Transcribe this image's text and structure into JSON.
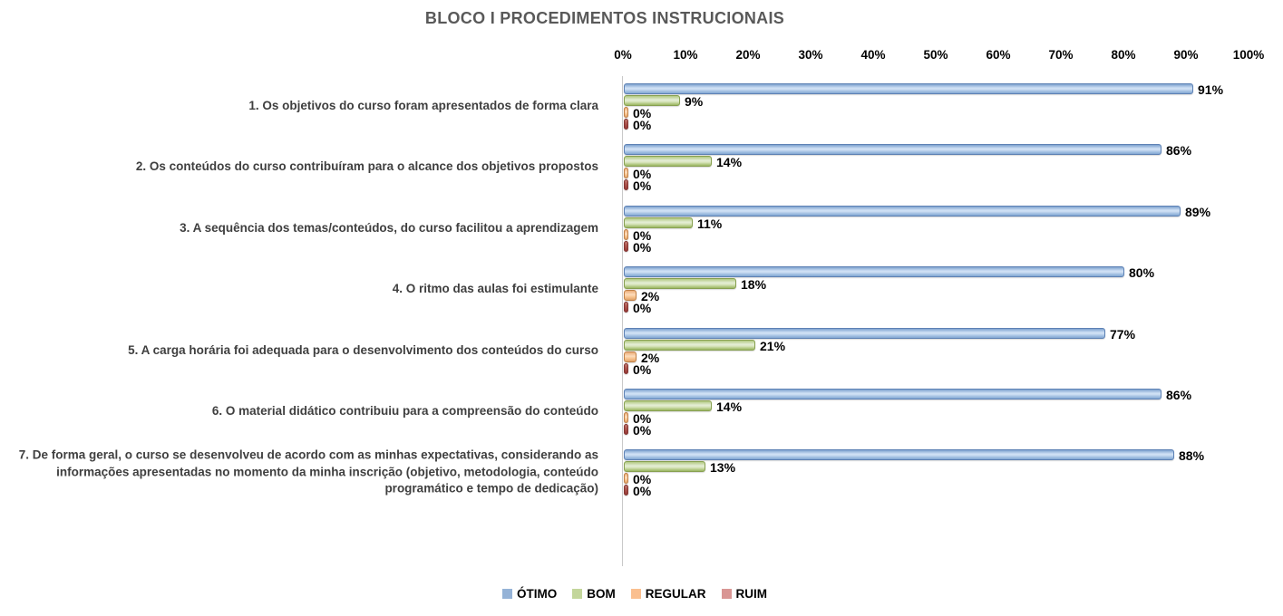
{
  "chart_data": {
    "type": "bar",
    "orientation": "horizontal",
    "title": "BLOCO I PROCEDIMENTOS INSTRUCIONAIS",
    "title_color": "#595959",
    "grid": false,
    "x_axis": {
      "position": "top",
      "min": 0,
      "max": 100,
      "tick_step": 10,
      "ticks": [
        "0%",
        "10%",
        "20%",
        "30%",
        "40%",
        "50%",
        "60%",
        "70%",
        "80%",
        "90%",
        "100%"
      ]
    },
    "categories": [
      "1. Os objetivos do curso foram apresentados de forma clara",
      "2. Os conteúdos do curso contribuíram para o alcance dos objetivos propostos",
      "3. A sequência dos temas/conteúdos, do curso facilitou a aprendizagem",
      "4. O ritmo das aulas foi estimulante",
      "5. A carga horária foi adequada para o desenvolvimento dos conteúdos do curso",
      "6. O material didático contribuiu para a compreensão do conteúdo",
      "7. De forma geral, o curso se desenvolveu de acordo com as minhas expectativas, considerando as informações apresentadas no momento da minha inscrição (objetivo, metodologia, conteúdo programático e tempo de dedicação)"
    ],
    "series": [
      {
        "name": "ÓTIMO",
        "legend_color": "#95B3D7",
        "values": [
          91,
          86,
          89,
          80,
          77,
          86,
          88
        ]
      },
      {
        "name": "BOM",
        "legend_color": "#C3D69B",
        "values": [
          9,
          14,
          11,
          18,
          21,
          14,
          13
        ]
      },
      {
        "name": "REGULAR",
        "legend_color": "#FABF8F",
        "values": [
          0,
          0,
          0,
          2,
          2,
          0,
          0
        ]
      },
      {
        "name": "RUIM",
        "legend_color": "#D99694",
        "values": [
          0,
          0,
          0,
          0,
          0,
          0,
          0
        ]
      }
    ],
    "data_labels": {
      "format": "{value}%",
      "position": "outside-end"
    },
    "legend": {
      "position": "bottom"
    }
  }
}
